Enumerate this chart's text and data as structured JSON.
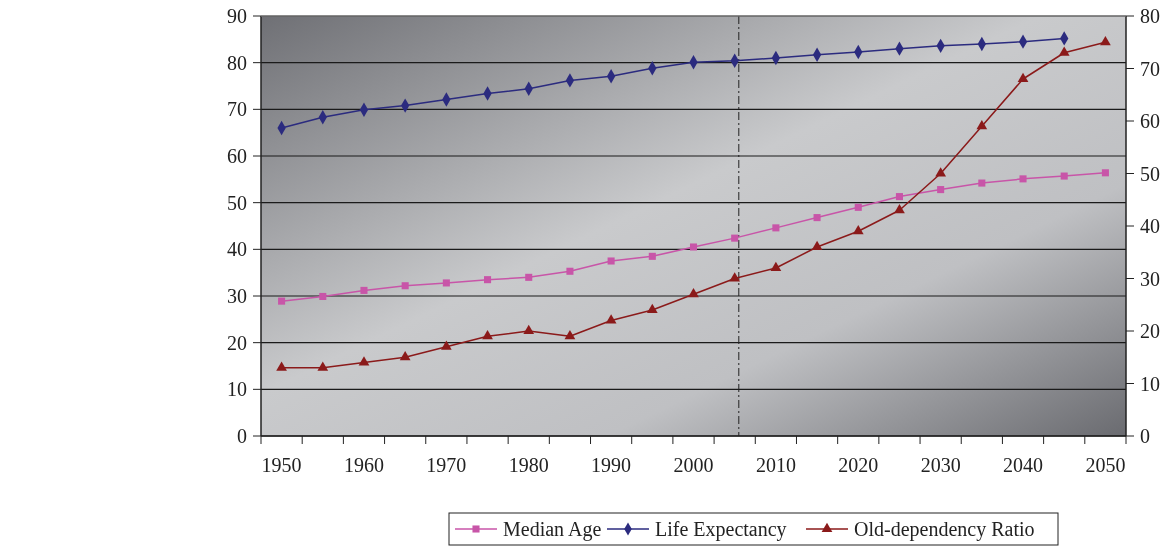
{
  "chart_data": {
    "type": "line",
    "x": [
      1950,
      1955,
      1960,
      1965,
      1970,
      1975,
      1980,
      1985,
      1990,
      1995,
      2000,
      2005,
      2010,
      2015,
      2020,
      2025,
      2030,
      2035,
      2040,
      2045,
      2050
    ],
    "xlim": [
      1947.5,
      2052.5
    ],
    "xticks": [
      1950,
      1960,
      1970,
      1980,
      1990,
      2000,
      2010,
      2020,
      2030,
      2040,
      2050,
      {
        "value": 1947.5,
        "label": null
      },
      {
        "value": 1952.5,
        "label": null
      },
      {
        "value": 1957.5,
        "label": null
      },
      {
        "value": 1962.5,
        "label": null
      },
      {
        "value": 1967.5,
        "label": null
      },
      {
        "value": 1972.5,
        "label": null
      },
      {
        "value": 1977.5,
        "label": null
      },
      {
        "value": 1982.5,
        "label": null
      },
      {
        "value": 1987.5,
        "label": null
      },
      {
        "value": 1992.5,
        "label": null
      },
      {
        "value": 1997.5,
        "label": null
      },
      {
        "value": 2002.5,
        "label": null
      },
      {
        "value": 2007.5,
        "label": null
      },
      {
        "value": 2012.5,
        "label": null
      },
      {
        "value": 2017.5,
        "label": null
      },
      {
        "value": 2022.5,
        "label": null
      },
      {
        "value": 2027.5,
        "label": null
      },
      {
        "value": 2032.5,
        "label": null
      },
      {
        "value": 2037.5,
        "label": null
      },
      {
        "value": 2042.5,
        "label": null
      },
      {
        "value": 2047.5,
        "label": null
      },
      {
        "value": 2052.5,
        "label": null
      }
    ],
    "ylim": [
      0,
      90
    ],
    "yticks": [
      0,
      10,
      20,
      30,
      40,
      50,
      60,
      70,
      80,
      90
    ],
    "y2lim": [
      0,
      80
    ],
    "y2ticks": [
      0,
      10,
      20,
      30,
      40,
      50,
      60,
      70,
      80
    ],
    "grid": "y",
    "legend": "bottom",
    "ref_lines": [
      {
        "axis": "x",
        "value": 2005.5,
        "line_style": "dashdot",
        "color": "#222222"
      }
    ],
    "series": [
      {
        "name": "Median Age",
        "color": "#c855a8",
        "marker": "square",
        "values": [
          28.9,
          29.9,
          31.2,
          32.2,
          32.8,
          33.5,
          34.0,
          35.3,
          37.5,
          38.5,
          40.5,
          42.4,
          44.6,
          46.8,
          49.0,
          51.3,
          52.8,
          54.2,
          55.1,
          55.7,
          56.4
        ]
      },
      {
        "name": "Life Expectancy",
        "color": "#2b2b7f",
        "marker": "diamond",
        "values": [
          66.0,
          68.3,
          69.9,
          70.8,
          72.1,
          73.4,
          74.4,
          76.2,
          77.1,
          78.8,
          80.1,
          80.4,
          81.0,
          81.7,
          82.3,
          83.0,
          83.6,
          84.0,
          84.5,
          85.2,
          null
        ]
      },
      {
        "name": "Old-dependency Ratio",
        "color": "#8b1a1a",
        "marker": "triangle",
        "axis": "y2",
        "values": [
          13,
          13,
          14,
          15,
          17,
          19,
          20,
          19,
          22,
          24,
          27,
          30,
          32,
          36,
          39,
          43,
          50,
          59,
          68,
          73,
          75
        ]
      }
    ]
  }
}
